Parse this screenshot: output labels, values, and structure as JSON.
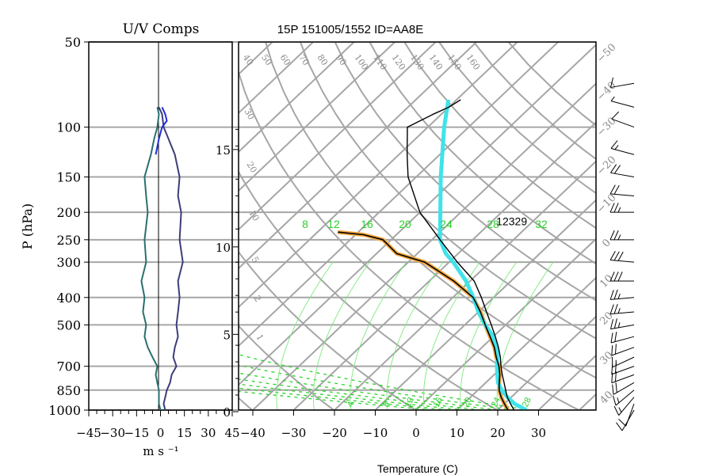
{
  "chart_data": [
    {
      "type": "line",
      "panel": "wind components",
      "title": "U/V Comps",
      "xlabel": "m s ⁻¹",
      "ylabel": "P (hPa)",
      "xlim": [
        -45,
        45
      ],
      "x_ticks": [
        -45,
        -30,
        -15,
        0,
        15,
        30,
        45
      ],
      "x_tick_labels": [
        "−45",
        "−30",
        "−15",
        "0",
        "15",
        "30",
        "45"
      ],
      "y_scale": "log",
      "ylim": [
        1000,
        50
      ],
      "y_ticks": [
        50,
        100,
        150,
        200,
        250,
        300,
        400,
        500,
        700,
        850,
        1000
      ],
      "y_tick_labels": [
        "50",
        "100",
        "150",
        "200",
        "250",
        "300",
        "400",
        "500",
        "700",
        "850",
        "1000"
      ],
      "grid": "horizontal at pressure ticks",
      "series": [
        {
          "color": "#2a6f6f",
          "p": [
            1000,
            950,
            900,
            850,
            800,
            750,
            700,
            650,
            600,
            550,
            500,
            450,
            400,
            350,
            300,
            250,
            200,
            175,
            150,
            125,
            110,
            100,
            90,
            85
          ],
          "x": [
            0,
            -1,
            -1,
            -1,
            -2,
            -3,
            -2,
            -5,
            -8,
            -10,
            -9,
            -11,
            -10,
            -12,
            -9,
            -10,
            -8,
            -9,
            -10,
            -6,
            -4,
            -2,
            -1,
            -2
          ]
        },
        {
          "color": "#3d3d7a",
          "p": [
            1000,
            950,
            900,
            850,
            800,
            750,
            700,
            650,
            600,
            550,
            500,
            450,
            400,
            350,
            300,
            250,
            200,
            175,
            150,
            125,
            110,
            100,
            90,
            85
          ],
          "x": [
            3,
            2,
            3,
            4,
            6,
            7,
            10,
            8,
            9,
            11,
            10,
            11,
            12,
            11,
            14,
            12,
            13,
            11,
            12,
            9,
            5,
            2,
            1,
            -1
          ]
        },
        {
          "color": "#1f2fd6",
          "p": [
            125,
            110,
            100,
            95,
            90,
            85
          ],
          "x": [
            -3,
            -1,
            1,
            4,
            3,
            1
          ]
        }
      ]
    },
    {
      "type": "line",
      "panel": "skew-T log-P",
      "title": "15P 151005/1552 ID=AA8E",
      "xlabel": "Temperature (C)",
      "xlim": [
        -45,
        42
      ],
      "x_ticks": [
        -40,
        -30,
        -20,
        -10,
        0,
        10,
        20,
        30
      ],
      "x_tick_labels": [
        "−40",
        "−30",
        "−20",
        "−10",
        "0",
        "10",
        "20",
        "30"
      ],
      "height_km_ticks": [
        0,
        5,
        10,
        15
      ],
      "height_km_labels": [
        "0",
        "5",
        "10",
        "15"
      ],
      "isotherm_labels": [
        "−50",
        "−40",
        "−30",
        "−20",
        "−10",
        "0",
        "10",
        "20",
        "30",
        "40"
      ],
      "theta_labels": [
        "40",
        "50",
        "60",
        "70",
        "80",
        "90",
        "100",
        "110",
        "120",
        "130",
        "140",
        "150",
        "160"
      ],
      "mixing_ratio_labels": [
        "8",
        "12",
        "16",
        "20",
        "24",
        "28",
        "32"
      ],
      "side_labels": [
        "30",
        "20",
        "10",
        "5",
        "2",
        "1"
      ],
      "bottom_labels": [
        "4",
        "8",
        "12",
        "16",
        "20",
        "24",
        "28"
      ],
      "annotation": "12329",
      "annotation_temperature_c": -29,
      "annotation_pressure_hpa": 215,
      "series": [
        {
          "color": "#f4a43c",
          "p": [
            1000,
            950,
            900,
            850,
            800,
            750,
            700,
            650,
            600,
            550,
            500,
            450,
            400,
            350,
            300,
            280,
            250,
            240,
            235
          ],
          "t": [
            22.5,
            20,
            17.5,
            15.2,
            13.3,
            11.4,
            9,
            6,
            3,
            -0.8,
            -5,
            -9.5,
            -15,
            -24,
            -36,
            -45,
            -52,
            -58,
            -65
          ]
        },
        {
          "color": "#000000",
          "p": [
            1000,
            950,
            900,
            850,
            800,
            750,
            700,
            650,
            600,
            550,
            500,
            450,
            400,
            350,
            300,
            280,
            250,
            240,
            235
          ],
          "t": [
            22.5,
            20,
            17.5,
            15.2,
            13.3,
            11.4,
            9,
            6,
            3,
            -0.8,
            -5,
            -9.5,
            -15,
            -24,
            -36,
            -45,
            -52,
            -58,
            -65
          ]
        },
        {
          "color": "#3fe3ea",
          "p": [
            1000,
            950,
            900,
            850,
            800,
            750,
            700,
            650,
            600,
            550,
            500,
            450,
            400,
            350,
            300,
            280,
            250,
            200,
            150,
            100,
            80
          ],
          "t": [
            27,
            22.5,
            19,
            15.8,
            13,
            10.8,
            8.5,
            6.3,
            3.5,
            0,
            -5,
            -10,
            -15,
            -21,
            -29,
            -33,
            -38,
            -45,
            -54,
            -66,
            -72
          ]
        },
        {
          "color": "#000000",
          "p": [
            1000,
            950,
            900,
            850,
            800,
            750,
            700,
            650,
            600,
            550,
            500,
            450,
            400,
            350,
            300,
            250,
            200,
            150,
            125,
            100,
            90,
            85,
            80
          ],
          "t": [
            24,
            21.5,
            19,
            16.8,
            14.5,
            12,
            9.5,
            7,
            4,
            0.5,
            -3.5,
            -8,
            -13,
            -19,
            -28,
            -38,
            -50,
            -62,
            -68,
            -75,
            -72,
            -70,
            -69
          ]
        }
      ]
    },
    {
      "type": "scatter",
      "panel": "wind barbs",
      "p": [
        1000,
        950,
        900,
        850,
        800,
        750,
        700,
        650,
        600,
        550,
        500,
        450,
        400,
        350,
        300,
        250,
        200,
        175,
        150,
        125,
        100,
        85,
        70
      ],
      "direction_deg": [
        210,
        200,
        220,
        230,
        240,
        250,
        250,
        245,
        250,
        255,
        260,
        265,
        265,
        270,
        275,
        270,
        270,
        275,
        280,
        285,
        290,
        285,
        260
      ],
      "speed_kt": [
        10,
        12,
        15,
        18,
        20,
        22,
        20,
        18,
        20,
        22,
        25,
        25,
        28,
        30,
        30,
        28,
        25,
        22,
        20,
        15,
        10,
        8,
        10
      ]
    }
  ]
}
